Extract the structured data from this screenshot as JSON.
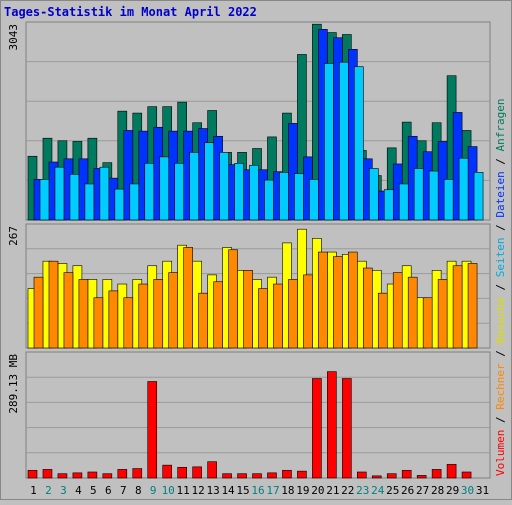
{
  "chart_data": [
    {
      "type": "bar",
      "title": "Tages-Statistik im Monat April 2022",
      "categories": [
        "1",
        "2",
        "3",
        "4",
        "5",
        "6",
        "7",
        "8",
        "9",
        "10",
        "11",
        "12",
        "13",
        "14",
        "15",
        "16",
        "17",
        "18",
        "19",
        "20",
        "21",
        "22",
        "23",
        "24",
        "25",
        "26",
        "27",
        "28",
        "29",
        "30",
        "31"
      ],
      "weekend_days": [
        "2",
        "3",
        "9",
        "10",
        "16",
        "17",
        "23",
        "24",
        "30"
      ],
      "ylabel_max": "3043",
      "ylim": [
        0,
        3043
      ],
      "right_labels": [
        "Anfragen",
        "Dateien",
        "Seiten"
      ],
      "series": [
        {
          "name": "Anfragen",
          "color": "#007a5e",
          "values": [
            990,
            1270,
            1230,
            1220,
            1270,
            890,
            1690,
            1660,
            1760,
            1760,
            1830,
            1510,
            1700,
            1050,
            1050,
            1110,
            1290,
            1660,
            2570,
            3040,
            2910,
            2880,
            1080,
            690,
            1120,
            1520,
            1230,
            1510,
            2240,
            1390,
            null
          ]
        },
        {
          "name": "Dateien",
          "color": "#0033ff",
          "values": [
            630,
            900,
            950,
            950,
            800,
            650,
            1390,
            1380,
            1440,
            1380,
            1380,
            1420,
            1300,
            860,
            780,
            780,
            750,
            1500,
            980,
            2960,
            2830,
            2650,
            950,
            450,
            870,
            1300,
            1060,
            1220,
            1670,
            1140,
            null
          ]
        },
        {
          "name": "Seiten",
          "color": "#00ccff",
          "values": [
            630,
            820,
            710,
            560,
            820,
            480,
            560,
            880,
            980,
            880,
            1050,
            1200,
            1050,
            880,
            850,
            620,
            740,
            720,
            630,
            2430,
            2450,
            2380,
            800,
            470,
            560,
            800,
            760,
            630,
            960,
            740,
            null
          ]
        }
      ]
    },
    {
      "type": "bar",
      "ylabel_max": "267",
      "ylim": [
        0,
        267
      ],
      "right_labels": [
        "Besuche",
        "Rechner"
      ],
      "series": [
        {
          "name": "Besuche",
          "color": "#ffff00",
          "values": [
            130,
            190,
            185,
            180,
            150,
            150,
            140,
            150,
            180,
            190,
            225,
            190,
            160,
            220,
            170,
            150,
            155,
            230,
            260,
            240,
            210,
            205,
            190,
            170,
            140,
            180,
            110,
            170,
            190,
            190,
            null
          ]
        },
        {
          "name": "Rechner",
          "color": "#ff8800",
          "values": [
            155,
            190,
            165,
            150,
            110,
            125,
            110,
            140,
            150,
            165,
            220,
            120,
            145,
            215,
            170,
            130,
            140,
            150,
            160,
            210,
            200,
            210,
            175,
            120,
            165,
            155,
            110,
            150,
            180,
            185,
            null
          ]
        }
      ]
    },
    {
      "type": "bar",
      "ylabel_max": "289.13 MB",
      "ylim": [
        0,
        289.13
      ],
      "right_labels": [
        "Volumen"
      ],
      "series": [
        {
          "name": "Volumen",
          "color": "#ff0000",
          "values": [
            18,
            20,
            10,
            12,
            14,
            10,
            20,
            22,
            225,
            30,
            25,
            26,
            38,
            10,
            10,
            10,
            12,
            18,
            16,
            232,
            248,
            232,
            14,
            5,
            10,
            18,
            6,
            20,
            32,
            14,
            null
          ]
        }
      ]
    }
  ]
}
